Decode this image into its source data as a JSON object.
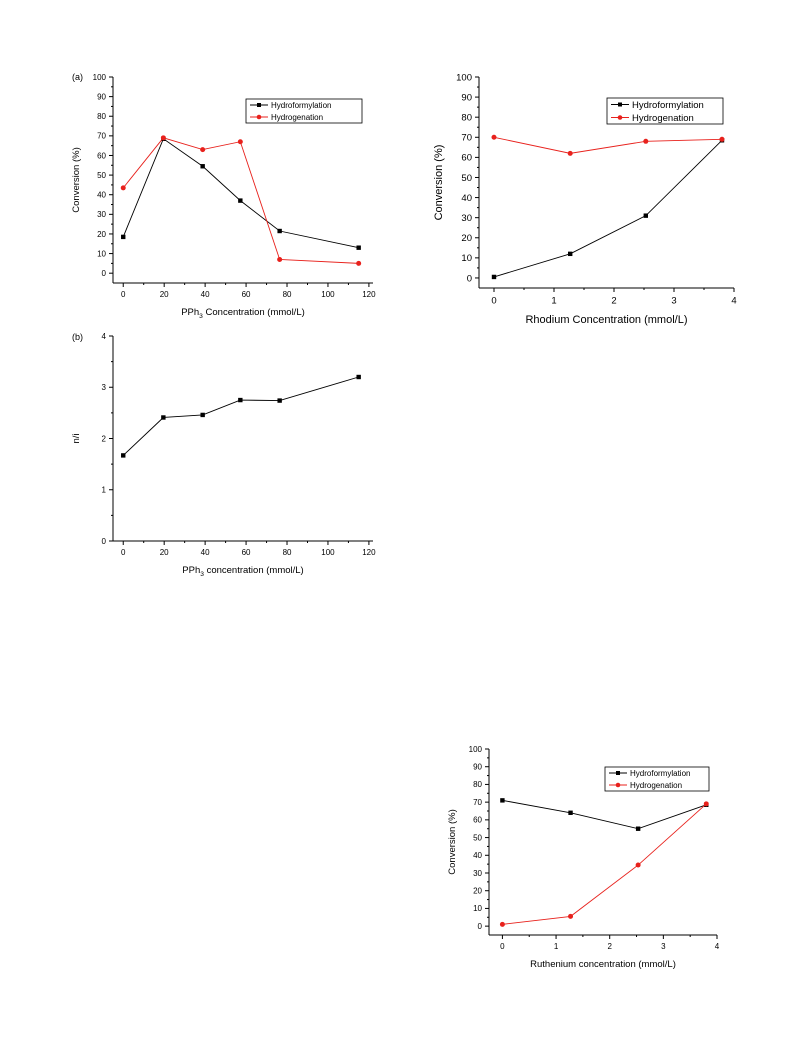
{
  "colors": {
    "black_series": "#000000",
    "red_series": "#e8211c"
  },
  "chart_data": [
    {
      "id": "a",
      "type": "line",
      "panel_label": "(a)",
      "title": "",
      "xlabel_main": "PPh",
      "xlabel_sub": "3",
      "xlabel_rest": " Concentration (mmol/L)",
      "ylabel": "Conversion (%)",
      "xlim": [
        -5,
        122
      ],
      "ylim": [
        -5,
        100
      ],
      "xticks": [
        0,
        20,
        40,
        60,
        80,
        100,
        120
      ],
      "yticks": [
        0,
        10,
        20,
        30,
        40,
        50,
        60,
        70,
        80,
        90,
        100
      ],
      "legend_position": "top-right",
      "series": [
        {
          "name": "Hydroformylation",
          "color": "#000000",
          "marker": "square",
          "x": [
            0,
            19.6,
            38.8,
            57.2,
            76.4,
            115
          ],
          "y": [
            18.5,
            68.5,
            54.5,
            37,
            21.5,
            13
          ]
        },
        {
          "name": "Hydrogenation",
          "color": "#e8211c",
          "marker": "circle",
          "x": [
            0,
            19.6,
            38.8,
            57.2,
            76.4,
            115
          ],
          "y": [
            43.5,
            69,
            63,
            67,
            7,
            5
          ]
        }
      ]
    },
    {
      "id": "rh",
      "type": "line",
      "panel_label": "",
      "title": "",
      "xlabel_main": "Rhodium Concentration (mmol/L)",
      "xlabel_sub": "",
      "xlabel_rest": "",
      "ylabel": "Conversion (%)",
      "xlim": [
        -0.25,
        4
      ],
      "ylim": [
        -5,
        100
      ],
      "xticks": [
        0,
        1,
        2,
        3,
        4
      ],
      "yticks": [
        0,
        10,
        20,
        30,
        40,
        50,
        60,
        70,
        80,
        90,
        100
      ],
      "legend_position": "top-right",
      "series": [
        {
          "name": "Hydroformylation",
          "color": "#000000",
          "marker": "square",
          "x": [
            0,
            1.27,
            2.53,
            3.8
          ],
          "y": [
            0.5,
            12,
            31,
            68.5
          ]
        },
        {
          "name": "Hydrogenation",
          "color": "#e8211c",
          "marker": "circle",
          "x": [
            0,
            1.27,
            2.53,
            3.8
          ],
          "y": [
            70,
            62,
            68,
            69
          ]
        }
      ]
    },
    {
      "id": "b",
      "type": "line",
      "panel_label": "(b)",
      "title": "",
      "xlabel_main": "PPh",
      "xlabel_sub": "3",
      "xlabel_rest": " concentration (mmol/L)",
      "ylabel": "n/i",
      "xlim": [
        -5,
        122
      ],
      "ylim": [
        0,
        4
      ],
      "xticks": [
        0,
        20,
        40,
        60,
        80,
        100,
        120
      ],
      "yticks": [
        0,
        1,
        2,
        3,
        4
      ],
      "legend_position": "",
      "series": [
        {
          "name": "",
          "color": "#000000",
          "marker": "square",
          "x": [
            0,
            19.6,
            38.8,
            57.2,
            76.4,
            115
          ],
          "y": [
            1.67,
            2.41,
            2.46,
            2.75,
            2.74,
            3.2
          ]
        }
      ]
    },
    {
      "id": "ru",
      "type": "line",
      "panel_label": "",
      "title": "",
      "xlabel_main": "Ruthenium concentration (mmol/L)",
      "xlabel_sub": "",
      "xlabel_rest": "",
      "ylabel": "Conversion (%)",
      "xlim": [
        -0.25,
        4
      ],
      "ylim": [
        -5,
        100
      ],
      "xticks": [
        0,
        1,
        2,
        3,
        4
      ],
      "yticks": [
        0,
        10,
        20,
        30,
        40,
        50,
        60,
        70,
        80,
        90,
        100
      ],
      "legend_position": "top-right",
      "series": [
        {
          "name": "Hydroformylation",
          "color": "#000000",
          "marker": "square",
          "x": [
            0,
            1.27,
            2.53,
            3.8
          ],
          "y": [
            71,
            64,
            55,
            68.5
          ]
        },
        {
          "name": "Hydrogenation",
          "color": "#e8211c",
          "marker": "circle",
          "x": [
            0,
            1.27,
            2.53,
            3.8
          ],
          "y": [
            1,
            5.5,
            34.5,
            69
          ]
        }
      ]
    }
  ]
}
